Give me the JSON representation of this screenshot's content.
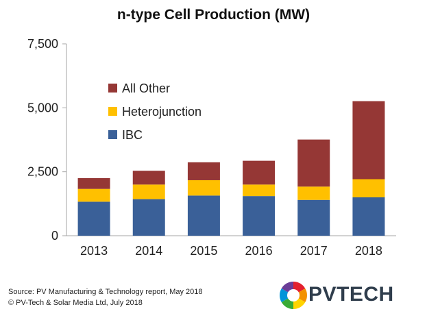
{
  "chart_data": {
    "type": "bar",
    "stacked": true,
    "title": "n-type Cell Production (MW)",
    "xlabel": "",
    "ylabel": "",
    "categories": [
      "2013",
      "2014",
      "2015",
      "2016",
      "2017",
      "2018"
    ],
    "series": [
      {
        "name": "IBC",
        "values": [
          1330,
          1430,
          1570,
          1550,
          1400,
          1500
        ],
        "color": "#3a6098"
      },
      {
        "name": "Heterojunction",
        "values": [
          500,
          570,
          600,
          450,
          520,
          710
        ],
        "color": "#ffc000"
      },
      {
        "name": "All Other",
        "values": [
          420,
          540,
          700,
          930,
          1840,
          3050
        ],
        "color": "#953735"
      }
    ],
    "ylim": [
      0,
      7500
    ],
    "yticks": [
      0,
      2500,
      5000,
      7500
    ],
    "ytick_labels": [
      "0",
      "2,500",
      "5,000",
      "7,500"
    ],
    "grid": false,
    "legend_position": "top-left",
    "legend_order": [
      "All Other",
      "Heterojunction",
      "IBC"
    ]
  },
  "footer": {
    "source_line": "Source: PV Manufacturing & Technology report, May 2018",
    "copyright_line": "© PV-Tech & Solar Media Ltd, July 2018"
  },
  "logo": {
    "text": "PVTECH",
    "colors": [
      "#e4202e",
      "#f39200",
      "#ffd400",
      "#3aaa35",
      "#0094d9",
      "#6a3d97"
    ]
  }
}
